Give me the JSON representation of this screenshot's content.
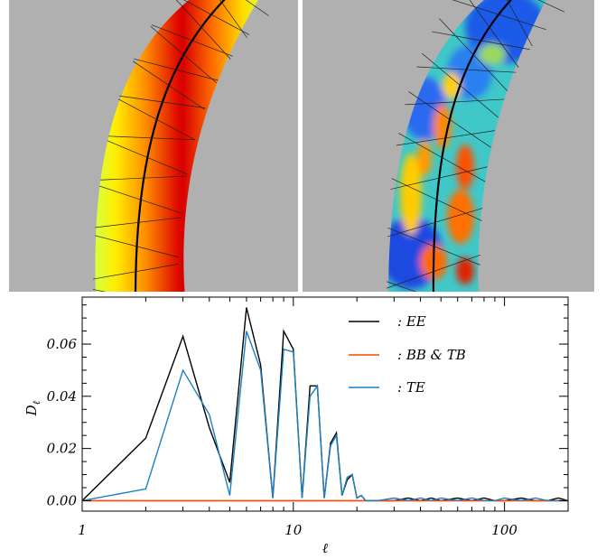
{
  "chart_data": {
    "type": "line",
    "xlabel": "ℓ",
    "ylabel": "D",
    "ylabel_sub": "ℓ",
    "xscale": "log",
    "xlim": [
      1,
      200
    ],
    "ylim": [
      -0.004,
      0.078
    ],
    "xticks": [
      1,
      10,
      100
    ],
    "xtick_labels": [
      "1",
      "10",
      "100"
    ],
    "yticks": [
      0.0,
      0.02,
      0.04,
      0.06
    ],
    "ytick_labels": [
      "0.00",
      "0.02",
      "0.04",
      "0.06"
    ],
    "grid": false,
    "legend_position": "top-right",
    "series": [
      {
        "name": ": EE",
        "color": "#000000",
        "x": [
          1,
          2,
          3,
          4,
          5,
          6,
          7,
          8,
          9,
          10,
          11,
          12,
          13,
          14,
          15,
          16,
          17,
          18,
          19,
          20,
          21,
          22,
          25,
          30,
          35,
          40,
          45,
          50,
          60,
          70,
          80,
          90,
          100,
          120,
          140,
          160,
          180,
          200
        ],
        "y": [
          0.0,
          0.024,
          0.063,
          0.028,
          0.007,
          0.074,
          0.052,
          0.001,
          0.065,
          0.058,
          0.001,
          0.044,
          0.044,
          0.001,
          0.022,
          0.026,
          0.002,
          0.008,
          0.01,
          0.001,
          0.002,
          0.0,
          0.0,
          0.0,
          0.001,
          0.0,
          0.001,
          0.0,
          0.001,
          0.0,
          0.001,
          0.0,
          0.0,
          0.001,
          0.0,
          0.0,
          0.001,
          0.0
        ]
      },
      {
        "name": ": BB & TB",
        "color": "#ff4500",
        "x": [
          1,
          200
        ],
        "y": [
          0.0,
          0.0
        ]
      },
      {
        "name": ": TE",
        "color": "#1f7fc0",
        "x": [
          1,
          2,
          3,
          4,
          5,
          6,
          7,
          8,
          9,
          10,
          11,
          12,
          13,
          14,
          15,
          16,
          17,
          18,
          19,
          20,
          21,
          22,
          25,
          30,
          35,
          40,
          45,
          50,
          60,
          70,
          80,
          90,
          100,
          120,
          140,
          160,
          180,
          200
        ],
        "y": [
          0.0,
          0.0045,
          0.05,
          0.033,
          0.002,
          0.065,
          0.05,
          0.001,
          0.058,
          0.057,
          0.001,
          0.04,
          0.044,
          0.001,
          0.021,
          0.025,
          0.002,
          0.009,
          0.01,
          0.001,
          0.002,
          0.0,
          0.0,
          0.001,
          0.0,
          0.001,
          0.0,
          0.001,
          0.0,
          0.001,
          0.0,
          0.0,
          0.001,
          0.0,
          0.001,
          0.0,
          0.0,
          0.0
        ]
      }
    ]
  },
  "colors": {
    "mask_gray": "#b0b0b0",
    "panel_separator": "#ffffff"
  }
}
